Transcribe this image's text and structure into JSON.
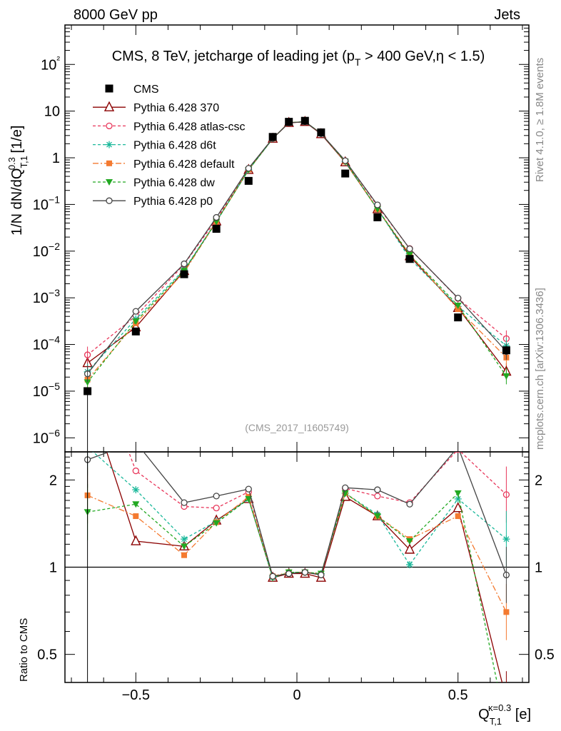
{
  "header": {
    "left": "8000 GeV pp",
    "right": "Jets"
  },
  "side_labels": {
    "rivet": "Rivet 4.1.0, ≥ 1.8M events",
    "mcplots": "mcplots.cern.ch [arXiv:1306.3436]"
  },
  "chart_data": {
    "type": "line",
    "title": "CMS, 8 TeV, jetcharge of leading jet (pT > 400 GeV,η < 1.5)",
    "analysis_id": "(CMS_2017_I1605749)",
    "x_axis": {
      "label": "Q T,1 κ=0.3 [e]",
      "range": [
        -0.72,
        0.72
      ],
      "ticks": [
        -0.5,
        0,
        0.5
      ],
      "tick_labels": [
        "−0.5",
        "0",
        "0.5"
      ]
    },
    "main_panel": {
      "ylabel": "1/N dN/dQ T,1 0.3 [1/e]",
      "yscale": "log",
      "ylim": [
        5e-07,
        700
      ],
      "tick_labels": [
        "10−6",
        "10−5",
        "10−4",
        "10−3",
        "10−2",
        "10−1",
        "1",
        "10",
        "10²"
      ]
    },
    "ratio_panel": {
      "ylabel": "Ratio to CMS",
      "yscale": "log",
      "ylim": [
        0.4,
        2.5
      ],
      "tick_labels": [
        "0.5",
        "1",
        "2"
      ]
    },
    "x": [
      -0.65,
      -0.5,
      -0.35,
      -0.25,
      -0.15,
      -0.075,
      -0.025,
      0.025,
      0.075,
      0.15,
      0.25,
      0.35,
      0.5,
      0.65
    ],
    "data": {
      "name": "CMS",
      "values": [
        1e-05,
        0.00019,
        0.0032,
        0.03,
        0.32,
        2.8,
        5.9,
        6.2,
        3.5,
        0.46,
        0.053,
        0.0068,
        0.00038,
        7.5e-05
      ]
    },
    "series": [
      {
        "name": "Pythia 6.428 370",
        "color": "#8b0000",
        "style": "solid",
        "marker": "open-triangle",
        "ratio": [
          4.0,
          1.23,
          1.18,
          1.45,
          1.72,
          0.92,
          0.95,
          0.95,
          0.92,
          1.75,
          1.5,
          1.15,
          1.6,
          0.35
        ]
      },
      {
        "name": "Pythia 6.428 atlas-csc",
        "color": "#e8365a",
        "style": "dashed",
        "marker": "open-circle",
        "ratio": [
          6.0,
          2.15,
          1.62,
          1.6,
          1.82,
          0.93,
          0.95,
          0.96,
          0.94,
          1.87,
          1.76,
          1.67,
          2.55,
          1.78
        ]
      },
      {
        "name": "Pythia 6.428 d6t",
        "color": "#1ab89a",
        "style": "dashed",
        "marker": "asterisk",
        "ratio": [
          2.6,
          1.85,
          1.25,
          1.44,
          1.72,
          0.92,
          0.96,
          0.96,
          0.95,
          1.8,
          1.52,
          1.02,
          1.72,
          1.25
        ]
      },
      {
        "name": "Pythia 6.428 default",
        "color": "#f47a30",
        "style": "dashdot",
        "marker": "filled-square",
        "ratio": [
          1.77,
          1.5,
          1.1,
          1.43,
          1.75,
          0.93,
          0.96,
          0.96,
          0.95,
          1.8,
          1.5,
          1.25,
          1.5,
          0.7
        ]
      },
      {
        "name": "Pythia 6.428 dw",
        "color": "#22a822",
        "style": "dashed",
        "marker": "filled-down-triangle",
        "ratio": [
          1.55,
          1.65,
          1.18,
          1.42,
          1.72,
          0.92,
          0.96,
          0.96,
          0.95,
          1.8,
          1.5,
          1.23,
          1.8,
          0.28
        ]
      },
      {
        "name": "Pythia 6.428 p0",
        "color": "#444444",
        "style": "solid",
        "marker": "open-circle",
        "ratio": [
          2.35,
          2.7,
          1.67,
          1.76,
          1.86,
          0.93,
          0.95,
          0.96,
          0.94,
          1.88,
          1.85,
          1.65,
          2.6,
          0.94
        ]
      }
    ]
  }
}
